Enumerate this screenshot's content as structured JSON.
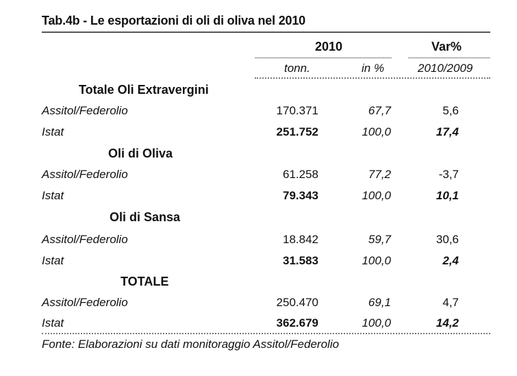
{
  "title": "Tab.4b - Le esportazioni di oli di oliva nel 2010",
  "header": {
    "year": "2010",
    "var": "Var%",
    "sub_tonn": "tonn.",
    "sub_inpc": "in %",
    "sub_var": "2010/2009"
  },
  "sections": [
    {
      "name": "Totale Oli Extravergini",
      "rows": [
        {
          "label": "Assitol/Federolio",
          "tonn": "170.371",
          "pct": "67,7",
          "var": "5,6"
        },
        {
          "label": "Istat",
          "tonn": "251.752",
          "pct": "100,0",
          "var": "17,4"
        }
      ]
    },
    {
      "name": "Oli di Oliva",
      "rows": [
        {
          "label": "Assitol/Federolio",
          "tonn": "61.258",
          "pct": "77,2",
          "var": "-3,7"
        },
        {
          "label": "Istat",
          "tonn": "79.343",
          "pct": "100,0",
          "var": "10,1"
        }
      ]
    },
    {
      "name": "Oli di Sansa",
      "rows": [
        {
          "label": "Assitol/Federolio",
          "tonn": "18.842",
          "pct": "59,7",
          "var": "30,6"
        },
        {
          "label": "Istat",
          "tonn": "31.583",
          "pct": "100,0",
          "var": "2,4"
        }
      ]
    },
    {
      "name": "TOTALE",
      "rows": [
        {
          "label": "Assitol/Federolio",
          "tonn": "250.470",
          "pct": "69,1",
          "var": "4,7"
        },
        {
          "label": "Istat",
          "tonn": "362.679",
          "pct": "100,0",
          "var": "14,2"
        }
      ]
    }
  ],
  "source": "Fonte: Elaborazioni su dati monitoraggio Assitol/Federolio"
}
